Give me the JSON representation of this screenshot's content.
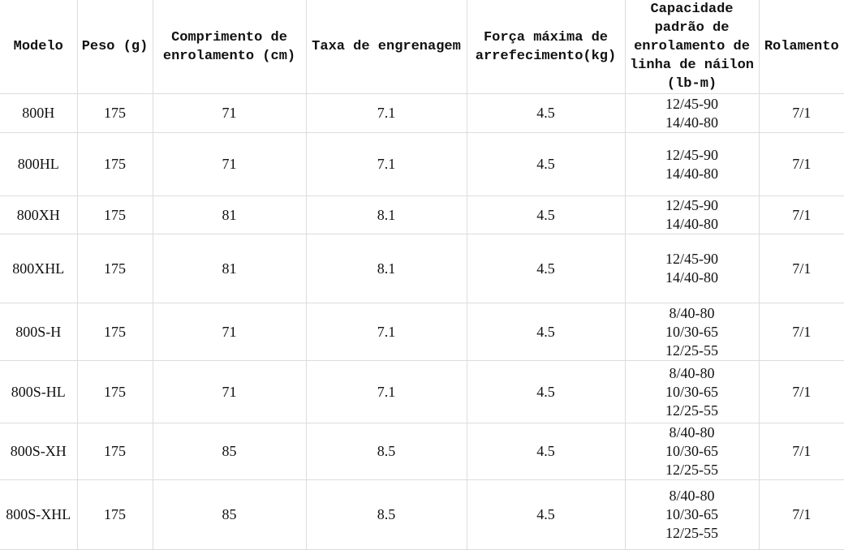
{
  "table": {
    "headers": [
      "Modelo",
      "Peso (g)",
      "Comprimento de enrolamento (cm)",
      "Taxa de engrenagem",
      "Força máxima de arrefecimento(kg)",
      "Capacidade padrão de enrolamento de linha de náilon (lb-m)",
      "Rolamento"
    ],
    "rows": [
      [
        "800H",
        "175",
        "71",
        "7.1",
        "4.5",
        "12/45-90\n14/40-80",
        "7/1"
      ],
      [
        "800HL",
        "175",
        "71",
        "7.1",
        "4.5",
        "12/45-90\n14/40-80",
        "7/1"
      ],
      [
        "800XH",
        "175",
        "81",
        "8.1",
        "4.5",
        "12/45-90\n14/40-80",
        "7/1"
      ],
      [
        "800XHL",
        "175",
        "81",
        "8.1",
        "4.5",
        "12/45-90\n14/40-80",
        "7/1"
      ],
      [
        "800S-H",
        "175",
        "71",
        "7.1",
        "4.5",
        "8/40-80\n10/30-65\n12/25-55",
        "7/1"
      ],
      [
        "800S-HL",
        "175",
        "71",
        "7.1",
        "4.5",
        "8/40-80\n10/30-65\n12/25-55",
        "7/1"
      ],
      [
        "800S-XH",
        "175",
        "85",
        "8.5",
        "4.5",
        "8/40-80\n10/30-65\n12/25-55",
        "7/1"
      ],
      [
        "800S-XHL",
        "175",
        "85",
        "8.5",
        "4.5",
        "8/40-80\n10/30-65\n12/25-55",
        "7/1"
      ]
    ]
  }
}
